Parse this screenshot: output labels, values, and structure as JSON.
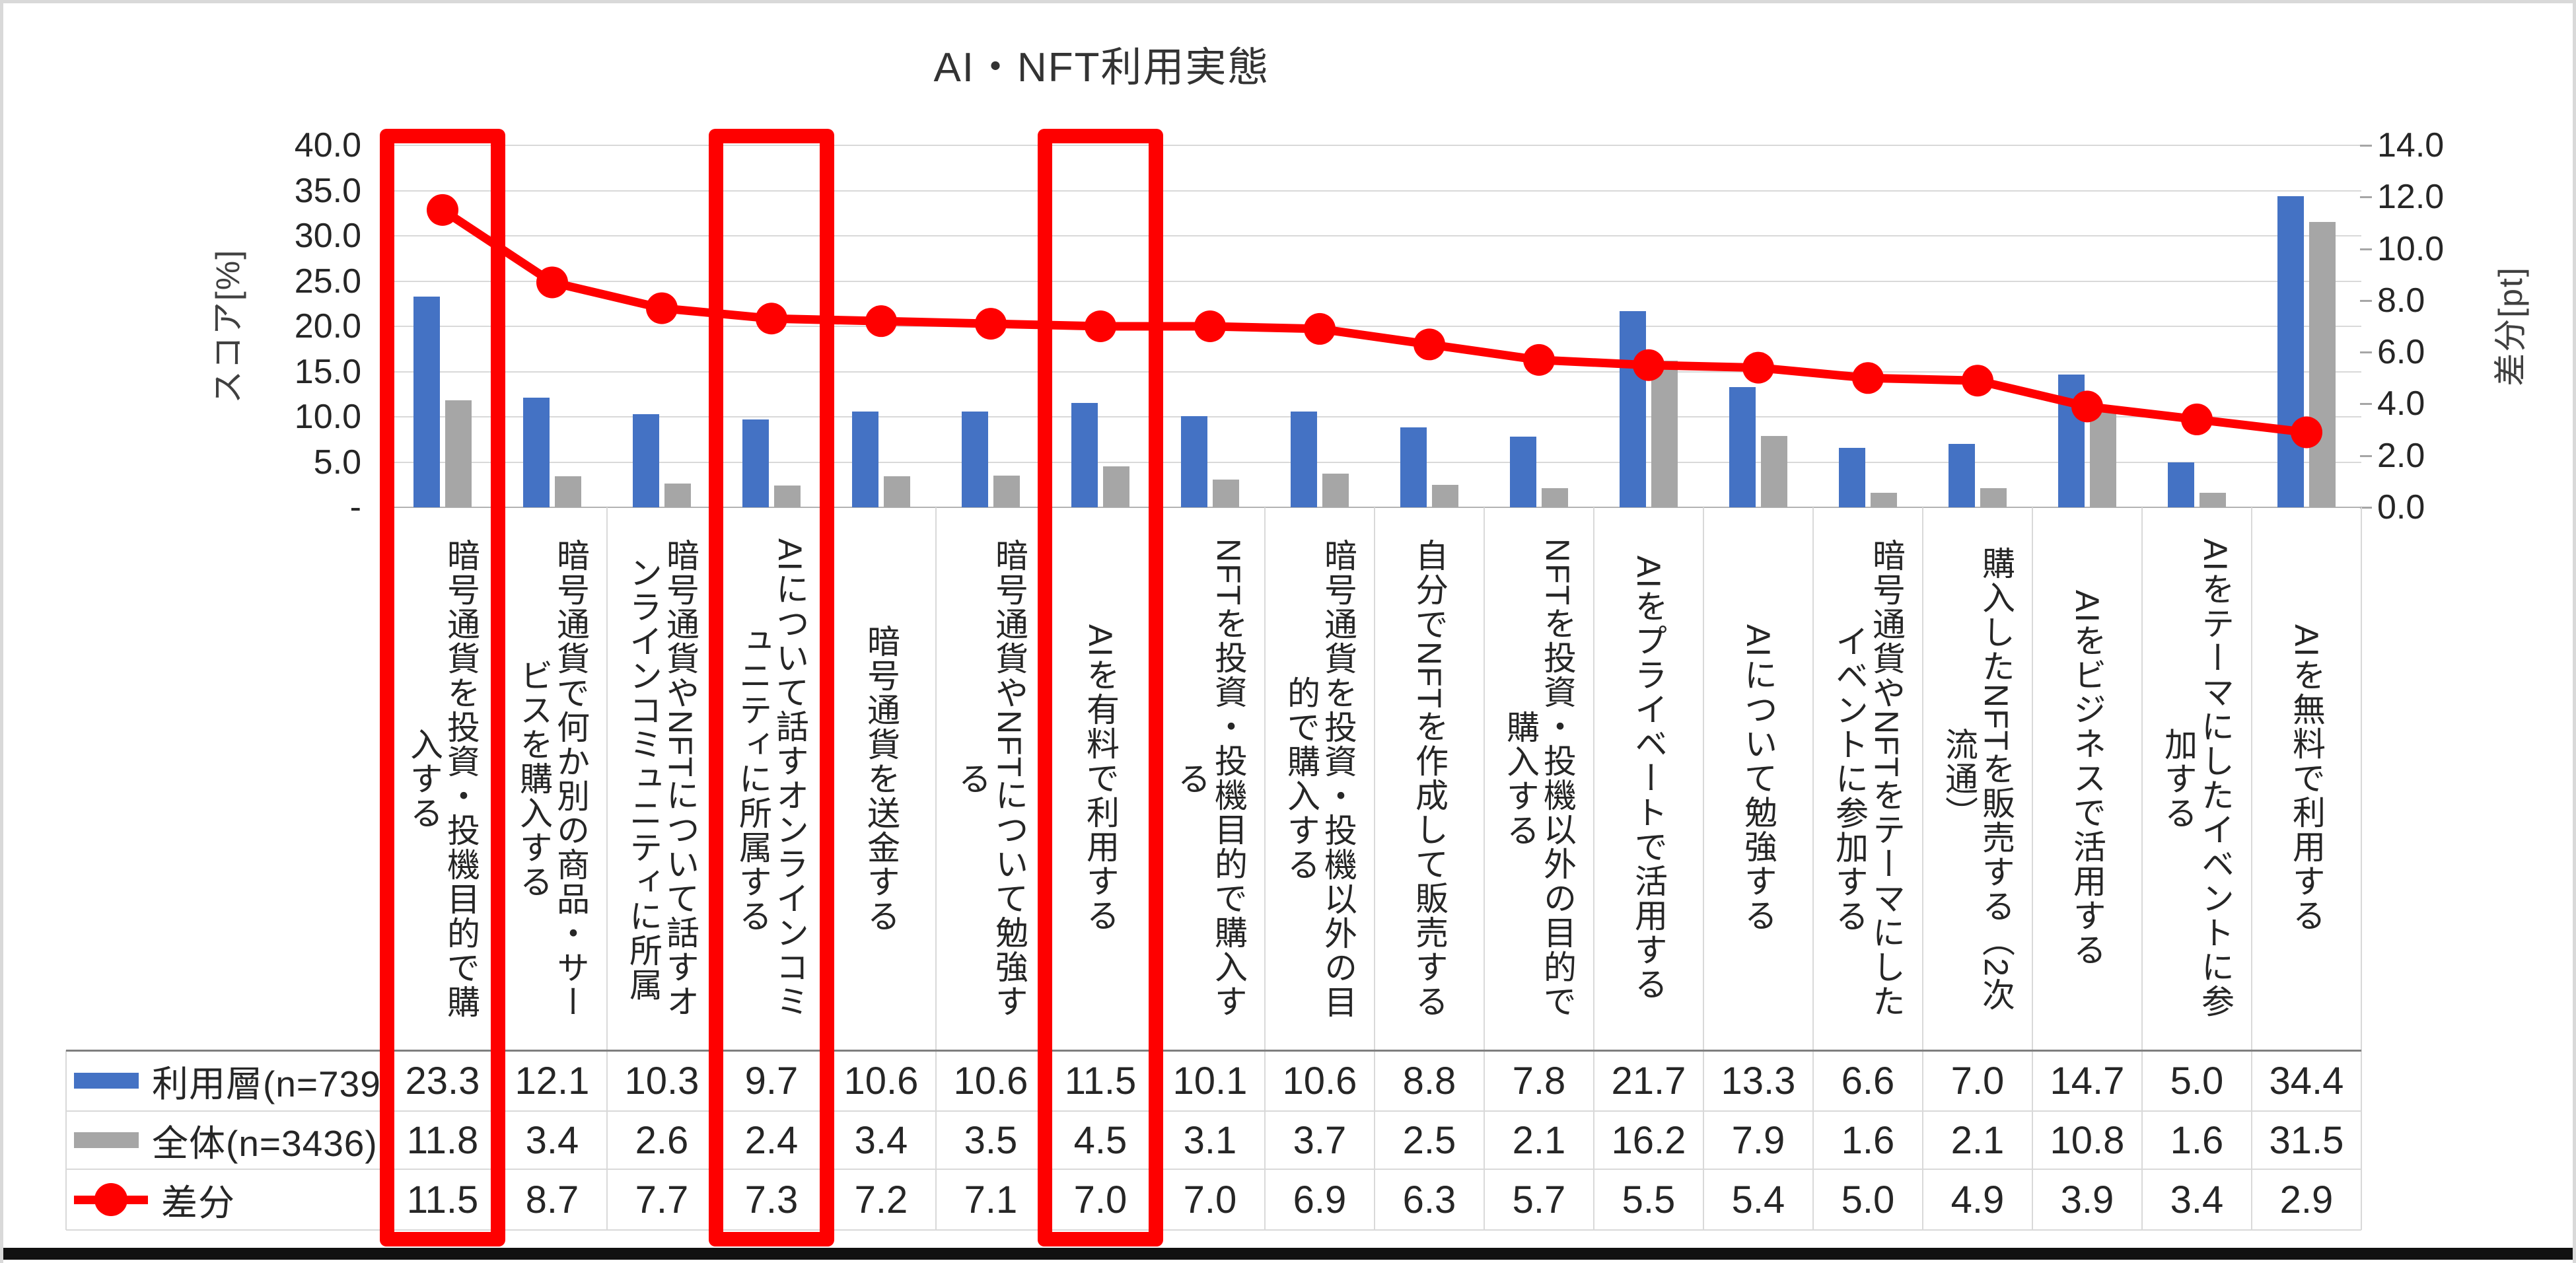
{
  "title": "AI・NFT利用実態",
  "chart_data": {
    "type": "combo",
    "subtype": "clustered-bar + line, secondary axis, data table below",
    "categories": [
      "暗号通貨を投資・投機目的で購入する",
      "暗号通貨で何か別の商品・サービスを購入する",
      "暗号通貨やNFTについて話すオンラインコミュニティに所属",
      "AIについて話すオンラインコミュニティに所属する",
      "暗号通貨を送金する",
      "暗号通貨やNFTについて勉強する",
      "AIを有料で利用する",
      "NFTを投資・投機目的で購入する",
      "暗号通貨を投資・投機以外の目的で購入する",
      "自分でNFTを作成して販売する",
      "NFTを投資・投機以外の目的で購入する",
      "AIをプライベートで活用する",
      "AIについて勉強する",
      "暗号通貨やNFTをテーマにしたイベントに参加する",
      "購入したNFTを販売する（2次流通）",
      "AIをビジネスで活用する",
      "AIをテーマにしたイベントに参加する",
      "AIを無料で利用する"
    ],
    "series": [
      {
        "name": "利用層(n=739)",
        "type": "bar",
        "axis": "left",
        "color": "#4472C4",
        "values": [
          23.3,
          12.1,
          10.3,
          9.7,
          10.6,
          10.6,
          11.5,
          10.1,
          10.6,
          8.8,
          7.8,
          21.7,
          13.3,
          6.6,
          7.0,
          14.7,
          5.0,
          34.4
        ]
      },
      {
        "name": "全体(n=3436)",
        "type": "bar",
        "axis": "left",
        "color": "#A6A6A6",
        "values": [
          11.8,
          3.4,
          2.6,
          2.4,
          3.4,
          3.5,
          4.5,
          3.1,
          3.7,
          2.5,
          2.1,
          16.2,
          7.9,
          1.6,
          2.1,
          10.8,
          1.6,
          31.5
        ]
      },
      {
        "name": "差分",
        "type": "line",
        "axis": "right",
        "color": "#FF0000",
        "values": [
          11.5,
          8.7,
          7.7,
          7.3,
          7.2,
          7.1,
          7.0,
          7.0,
          6.9,
          6.3,
          5.7,
          5.5,
          5.4,
          5.0,
          4.9,
          3.9,
          3.4,
          2.9
        ]
      }
    ],
    "left_axis": {
      "title": "スコア[%]",
      "min": 0,
      "max": 40,
      "major_unit": 5,
      "tick_labels": [
        "40.0",
        "35.0",
        "30.0",
        "25.0",
        "20.0",
        "15.0",
        "10.0",
        "5.0",
        "-"
      ]
    },
    "right_axis": {
      "title": "差分[pt]",
      "min": 0,
      "max": 14,
      "major_unit": 2,
      "tick_labels": [
        "14.0",
        "12.0",
        "10.0",
        "8.0",
        "6.0",
        "4.0",
        "2.0",
        "0.0"
      ]
    },
    "legend": [
      "利用層(n=739)",
      "全体(n=3436)",
      "差分"
    ],
    "highlighted_category_indices": [
      0,
      3,
      6
    ],
    "highlight_color": "#FE0000",
    "gridlines": true,
    "data_table_shown": true
  },
  "colors": {
    "bar_primary": "#4472C4",
    "bar_secondary": "#A6A6A6",
    "line": "#FF0000",
    "gridline": "#D9D9D9",
    "table_top_border": "#7F7F7F",
    "text": "#262626"
  }
}
